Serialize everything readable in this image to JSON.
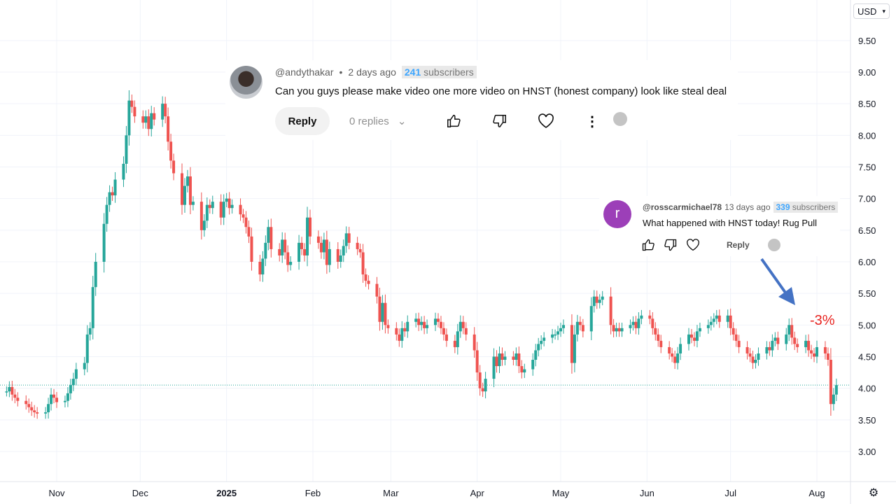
{
  "chart_data": {
    "type": "candlestick",
    "currency_selector": "USD",
    "y_ticks": [
      "9.50",
      "9.00",
      "8.50",
      "8.00",
      "7.50",
      "7.00",
      "6.50",
      "6.00",
      "5.50",
      "5.00",
      "4.50",
      "4.00",
      "3.50",
      "3.00"
    ],
    "ylim": [
      2.7,
      10.0
    ],
    "x_ticks": [
      {
        "label": "Nov",
        "date": "2024-11-01",
        "bold": false
      },
      {
        "label": "Dec",
        "date": "2024-12-01",
        "bold": false
      },
      {
        "label": "2025",
        "date": "2025-01-01",
        "bold": true
      },
      {
        "label": "Feb",
        "date": "2025-02-01",
        "bold": false
      },
      {
        "label": "Mar",
        "date": "2025-03-01",
        "bold": false
      },
      {
        "label": "Apr",
        "date": "2025-04-01",
        "bold": false
      },
      {
        "label": "May",
        "date": "2025-05-01",
        "bold": false
      },
      {
        "label": "Jun",
        "date": "2025-06-01",
        "bold": false
      },
      {
        "label": "Jul",
        "date": "2025-07-01",
        "bold": false
      },
      {
        "label": "Aug",
        "date": "2025-08-01",
        "bold": false
      }
    ],
    "grid": true,
    "last_price_line": 4.05,
    "up_color": "#26a69a",
    "down_color": "#ef5350",
    "weekly_closes": [
      {
        "week_of": "2024-10-14",
        "closes": [
          3.95,
          4.02,
          3.9,
          3.85,
          3.8
        ]
      },
      {
        "week_of": "2024-10-21",
        "closes": [
          3.75,
          3.7,
          3.65,
          3.62,
          3.6
        ]
      },
      {
        "week_of": "2024-10-28",
        "closes": [
          3.62,
          3.75,
          3.9,
          3.85,
          3.78
        ]
      },
      {
        "week_of": "2024-11-04",
        "closes": [
          3.8,
          3.92,
          4.05,
          4.15,
          4.3
        ]
      },
      {
        "week_of": "2024-11-11",
        "closes": [
          4.4,
          4.85,
          4.95,
          5.6,
          6.0
        ]
      },
      {
        "week_of": "2024-11-18",
        "closes": [
          6.6,
          6.9,
          7.1,
          7.05,
          7.3
        ]
      },
      {
        "week_of": "2024-11-25",
        "closes": [
          7.55,
          8.0,
          8.55,
          8.45,
          8.3
        ]
      },
      {
        "week_of": "2024-12-02",
        "closes": [
          8.2,
          8.3,
          8.1,
          8.35,
          8.25
        ]
      },
      {
        "week_of": "2024-12-09",
        "closes": [
          8.5,
          8.3,
          7.9,
          7.6,
          7.4
        ]
      },
      {
        "week_of": "2024-12-16",
        "closes": [
          6.9,
          7.2,
          7.35,
          6.9,
          6.95
        ]
      },
      {
        "week_of": "2024-12-23",
        "closes": [
          6.5,
          6.65,
          6.9,
          6.85,
          6.95
        ]
      },
      {
        "week_of": "2024-12-30",
        "closes": [
          6.7,
          6.95,
          7.0,
          6.85,
          6.9
        ]
      },
      {
        "week_of": "2025-01-06",
        "closes": [
          6.75,
          6.7,
          6.55,
          6.4,
          6.0
        ]
      },
      {
        "week_of": "2025-01-13",
        "closes": [
          5.8,
          6.05,
          6.3,
          6.55,
          6.2
        ]
      },
      {
        "week_of": "2025-01-20",
        "closes": [
          6.1,
          6.35,
          6.15,
          5.95,
          6.0
        ]
      },
      {
        "week_of": "2025-01-27",
        "closes": [
          6.3,
          6.2,
          6.1,
          6.7,
          6.4
        ]
      },
      {
        "week_of": "2025-02-03",
        "closes": [
          6.3,
          6.15,
          6.35,
          5.95,
          6.2
        ]
      },
      {
        "week_of": "2025-02-10",
        "closes": [
          6.0,
          6.1,
          6.25,
          6.45,
          6.3
        ]
      },
      {
        "week_of": "2025-02-17",
        "closes": [
          6.2,
          6.15,
          5.8,
          5.7,
          5.65
        ]
      },
      {
        "week_of": "2025-02-24",
        "closes": [
          5.45,
          5.05,
          5.35,
          5.0,
          4.95
        ]
      },
      {
        "week_of": "2025-03-03",
        "closes": [
          4.85,
          4.75,
          4.95,
          4.9,
          5.05
        ]
      },
      {
        "week_of": "2025-03-10",
        "closes": [
          5.1,
          5.0,
          5.05,
          4.95,
          5.0
        ]
      },
      {
        "week_of": "2025-03-17",
        "closes": [
          5.1,
          5.05,
          4.95,
          4.85,
          4.75
        ]
      },
      {
        "week_of": "2025-03-24",
        "closes": [
          4.65,
          4.9,
          5.05,
          4.95,
          4.85
        ]
      },
      {
        "week_of": "2025-03-31",
        "closes": [
          4.6,
          4.25,
          4.0,
          3.95,
          4.15
        ]
      },
      {
        "week_of": "2025-04-07",
        "closes": [
          4.5,
          4.35,
          4.55,
          4.45,
          4.5
        ]
      },
      {
        "week_of": "2025-04-14",
        "closes": [
          4.45,
          4.55,
          4.35,
          4.25,
          4.3
        ]
      },
      {
        "week_of": "2025-04-21",
        "closes": [
          4.45,
          4.6,
          4.7,
          4.75,
          4.8
        ]
      },
      {
        "week_of": "2025-04-28",
        "closes": [
          4.85,
          4.85,
          4.9,
          4.95,
          5.0
        ]
      },
      {
        "week_of": "2025-05-05",
        "closes": [
          4.4,
          4.85,
          5.05,
          5.0,
          4.9
        ]
      },
      {
        "week_of": "2025-05-12",
        "closes": [
          5.3,
          5.45,
          5.35,
          5.4,
          5.45
        ]
      },
      {
        "week_of": "2025-05-19",
        "closes": [
          5.0,
          4.9,
          4.95,
          4.9,
          4.95
        ]
      },
      {
        "week_of": "2025-05-26",
        "closes": [
          5.0,
          5.05,
          4.95,
          5.1,
          5.15
        ]
      },
      {
        "week_of": "2025-06-02",
        "closes": [
          5.1,
          4.95,
          4.85,
          4.75,
          4.65
        ]
      },
      {
        "week_of": "2025-06-09",
        "closes": [
          4.55,
          4.5,
          4.4,
          4.55,
          4.7
        ]
      },
      {
        "week_of": "2025-06-16",
        "closes": [
          4.85,
          4.8,
          4.75,
          4.9,
          4.95
        ]
      },
      {
        "week_of": "2025-06-23",
        "closes": [
          5.0,
          5.05,
          5.1,
          5.15,
          5.05
        ]
      },
      {
        "week_of": "2025-06-30",
        "closes": [
          5.15,
          4.95,
          4.85,
          4.75,
          4.65
        ]
      },
      {
        "week_of": "2025-07-07",
        "closes": [
          4.55,
          4.5,
          4.4,
          4.45,
          4.55
        ]
      },
      {
        "week_of": "2025-07-14",
        "closes": [
          4.65,
          4.6,
          4.75,
          4.8,
          4.7
        ]
      },
      {
        "week_of": "2025-07-21",
        "closes": [
          4.85,
          5.0,
          4.8,
          4.7,
          4.65
        ]
      },
      {
        "week_of": "2025-07-28",
        "closes": [
          4.75,
          4.6,
          4.55,
          4.5,
          4.65
        ]
      },
      {
        "week_of": "2025-08-04",
        "closes": [
          4.55,
          4.45,
          3.75,
          3.9,
          4.05
        ]
      }
    ],
    "annotations": [
      {
        "text": "-3%",
        "color": "#e8231f",
        "date": "2025-07-24",
        "price": 5.28
      }
    ]
  },
  "comments": [
    {
      "handle": "@andythakar",
      "separator": "•",
      "time": "2 days ago",
      "subscriber_count": "241",
      "subscriber_label": "subscribers",
      "text": "Can you guys please make video one more video on HNST (honest company) look like steal deal",
      "reply_label": "Reply",
      "replies_label": "0 replies"
    },
    {
      "avatar_letter": "r",
      "handle": "@rosscarmichael78",
      "time": "13 days ago",
      "subscriber_count": "339",
      "subscriber_label": "subscribers",
      "text": "What happened with HNST today! Rug Pull",
      "reply_label": "Reply",
      "avatar_color": "#9c3fb8"
    }
  ],
  "arrow_color": "#4472c4"
}
